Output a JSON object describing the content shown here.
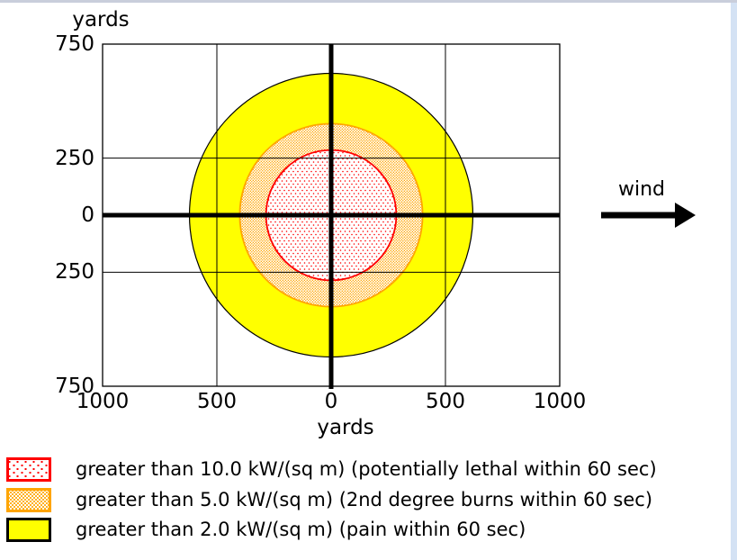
{
  "window": {
    "background": "#ffffff",
    "top_border_color": "#c9cedb",
    "right_border_color": "#d4e2f4"
  },
  "chart_data": {
    "type": "threat-zone-rings",
    "description": "Concentric thermal radiation threat zone circles centered at origin",
    "x_axis": {
      "title": "yards",
      "range": [
        -1000,
        1000
      ],
      "ticks": [
        -1000,
        -500,
        0,
        500,
        1000
      ],
      "tick_labels": [
        "1000",
        "500",
        "0",
        "500",
        "1000"
      ],
      "gridlines": [
        -500,
        500
      ]
    },
    "y_axis": {
      "title": "yards",
      "range": [
        -750,
        750
      ],
      "ticks": [
        750,
        250,
        0,
        -250,
        -750
      ],
      "tick_labels": [
        "750",
        "250",
        "0",
        "250",
        "750"
      ],
      "gridlines": [
        250,
        -250
      ]
    },
    "origin_axes": {
      "x": 0,
      "y": 0,
      "color": "#000000"
    },
    "zones": [
      {
        "name": "yellow-zone",
        "threshold": "greater than 2.0 kW/(sq m)",
        "effect": "pain within 60 sec",
        "radius_yards": 620,
        "fill": "#ffff00",
        "pattern": "solid",
        "outline": "#000000"
      },
      {
        "name": "orange-zone",
        "threshold": "greater than 5.0 kW/(sq m)",
        "effect": "2nd degree burns within 60 sec",
        "radius_yards": 400,
        "fill": "#ffffff",
        "pattern": "dense-dots",
        "dot_color": "#ffa500",
        "outline": "#ffa500"
      },
      {
        "name": "red-zone",
        "threshold": "greater than 10.0 kW/(sq m)",
        "effect": "potentially lethal within 60 sec",
        "radius_yards": 285,
        "fill": "#ffffff",
        "pattern": "sparse-dots",
        "dot_color": "#ff0000",
        "outline": "#ff0000"
      }
    ],
    "wind": {
      "label": "wind",
      "direction": "right"
    }
  },
  "legend": {
    "items": [
      {
        "label": "greater than 10.0 kW/(sq m) (potentially lethal within 60 sec)",
        "swatch": "red-dots"
      },
      {
        "label": "greater than 5.0 kW/(sq m) (2nd degree burns within 60 sec)",
        "swatch": "orange-dots"
      },
      {
        "label": "greater than 2.0 kW/(sq m) (pain within 60 sec)",
        "swatch": "yellow-solid"
      }
    ]
  }
}
